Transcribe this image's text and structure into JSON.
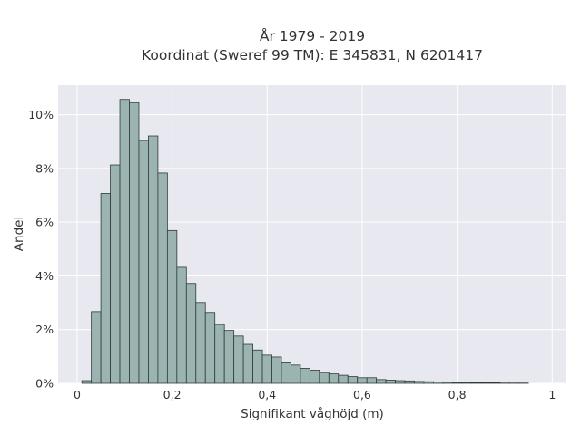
{
  "chart_data": {
    "type": "bar",
    "title": "År 1979 - 2019",
    "subtitle": "Koordinat (Sweref 99 TM): E 345831, N 6201417",
    "xlabel": "Signifikant våghöjd (m)",
    "ylabel": "Andel",
    "xlim": [
      -0.04,
      1.03
    ],
    "ylim": [
      0,
      0.111
    ],
    "bin_width": 0.02,
    "x_ticks": [
      0,
      0.2,
      0.4,
      0.6,
      0.8,
      1
    ],
    "x_tick_labels": [
      "0",
      "0,2",
      "0,4",
      "0,6",
      "0,8",
      "1"
    ],
    "y_ticks": [
      0,
      0.02,
      0.04,
      0.06,
      0.08,
      0.1
    ],
    "y_tick_labels": [
      "0%",
      "2%",
      "4%",
      "6%",
      "8%",
      "10%"
    ],
    "grid": true,
    "legend": "none",
    "colors": {
      "bar": "#9bb4b1",
      "plot_bg": "#e8e8f0",
      "grid": "#ffffff"
    },
    "bin_starts": [
      0.01,
      0.03,
      0.05,
      0.07,
      0.09,
      0.11,
      0.13,
      0.15,
      0.17,
      0.19,
      0.21,
      0.23,
      0.25,
      0.27,
      0.29,
      0.31,
      0.33,
      0.35,
      0.37,
      0.39,
      0.41,
      0.43,
      0.45,
      0.47,
      0.49,
      0.51,
      0.53,
      0.55,
      0.57,
      0.59,
      0.61,
      0.63,
      0.65,
      0.67,
      0.69,
      0.71,
      0.73,
      0.75,
      0.77,
      0.79,
      0.81,
      0.83,
      0.85,
      0.87,
      0.89,
      0.91,
      0.93
    ],
    "values": [
      0.001,
      0.0267,
      0.0707,
      0.0813,
      0.1057,
      0.1045,
      0.0904,
      0.0921,
      0.0783,
      0.0569,
      0.0432,
      0.0372,
      0.0301,
      0.0264,
      0.0219,
      0.0197,
      0.0176,
      0.0145,
      0.0124,
      0.0105,
      0.0098,
      0.0076,
      0.0068,
      0.0056,
      0.0049,
      0.004,
      0.0035,
      0.003,
      0.0025,
      0.0021,
      0.0021,
      0.0014,
      0.0012,
      0.001,
      0.0009,
      0.0007,
      0.0006,
      0.0005,
      0.0004,
      0.0003,
      0.0003,
      0.0002,
      0.0002,
      0.0002,
      0.0001,
      0.0001,
      0.0001
    ]
  }
}
